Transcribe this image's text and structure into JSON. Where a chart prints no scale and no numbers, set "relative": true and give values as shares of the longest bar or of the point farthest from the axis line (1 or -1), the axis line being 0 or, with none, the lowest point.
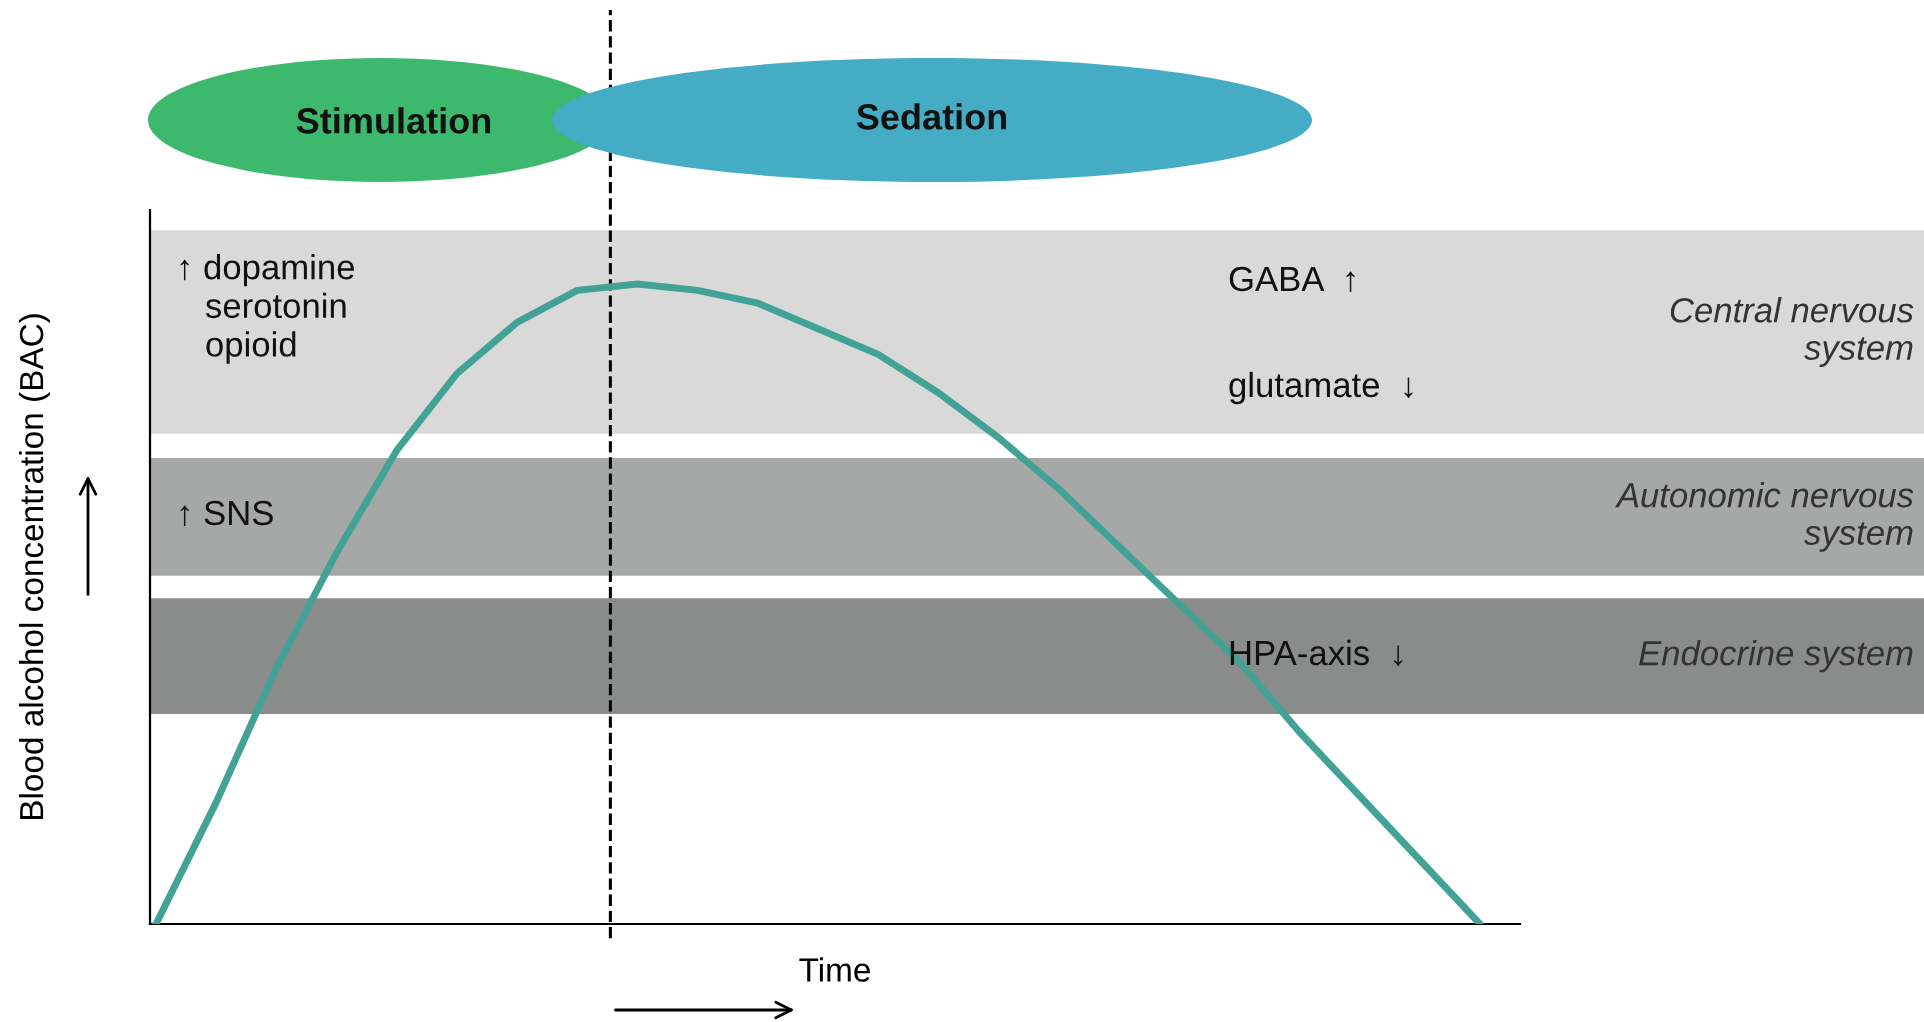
{
  "chart_data": {
    "type": "line",
    "relative": true,
    "xlabel": "Time",
    "ylabel": "Blood alcohol concentration (BAC)",
    "categories": [
      null,
      null,
      null,
      null,
      null,
      null,
      null,
      null,
      null,
      null,
      null,
      null,
      null,
      null,
      null,
      null,
      null,
      null,
      null,
      null,
      null,
      null,
      null
    ],
    "series": [
      {
        "values": [
          0,
          0.19,
          0.4,
          0.58,
          0.74,
          0.86,
          0.94,
          0.99,
          1,
          0.99,
          0.97,
          0.93,
          0.89,
          0.83,
          0.76,
          0.68,
          0.59,
          0.5,
          0.41,
          0.3,
          0.2,
          0.1,
          0
        ],
        "color": "#42a296"
      }
    ],
    "bands": [
      {
        "axis": "y",
        "from": 0.766,
        "to": 1.084,
        "label": "Central nervous\nsystem",
        "color": "#d9d9d9"
      },
      {
        "axis": "y",
        "from": 0.544,
        "to": 0.728,
        "label": "Autonomic nervous\nsystem",
        "color": "#a6a8a8"
      },
      {
        "axis": "y",
        "from": 0.328,
        "to": 0.509,
        "label": "Endocrine system",
        "color": "#8a8c8c"
      }
    ],
    "annotations": [
      "Stimulation",
      "Sedation",
      "↑ dopamine\n   serotonin\n   opioid",
      "GABA  ↑",
      "glutamate  ↓",
      "↑ SNS",
      "HPA-axis  ↓"
    ],
    "legend": false
  }
}
